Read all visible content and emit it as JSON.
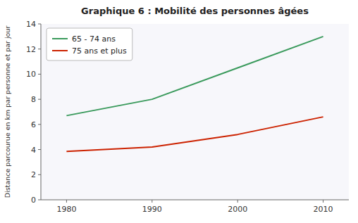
{
  "chart_data": {
    "type": "line",
    "title": "Graphique 6 : Mobilité des personnes âgées",
    "y_label": "Distance parcourue en km par personne et par jour",
    "x": [
      1980,
      1990,
      2000,
      2010
    ],
    "series": [
      {
        "name": "65 - 74 ans",
        "color": "#3a9a5c",
        "values": [
          6.7,
          8.0,
          10.5,
          13.0
        ]
      },
      {
        "name": "75 ans et plus",
        "color": "#cc2200",
        "values": [
          3.85,
          4.2,
          5.2,
          6.6
        ]
      }
    ],
    "xlim": [
      1977,
      2013
    ],
    "xticks": [
      1980,
      1990,
      2000,
      2010
    ],
    "ylim": [
      0,
      14
    ],
    "yticks": [
      0,
      2,
      4,
      6,
      8,
      10,
      12,
      14
    ],
    "grid": false,
    "legend": "upper left"
  }
}
